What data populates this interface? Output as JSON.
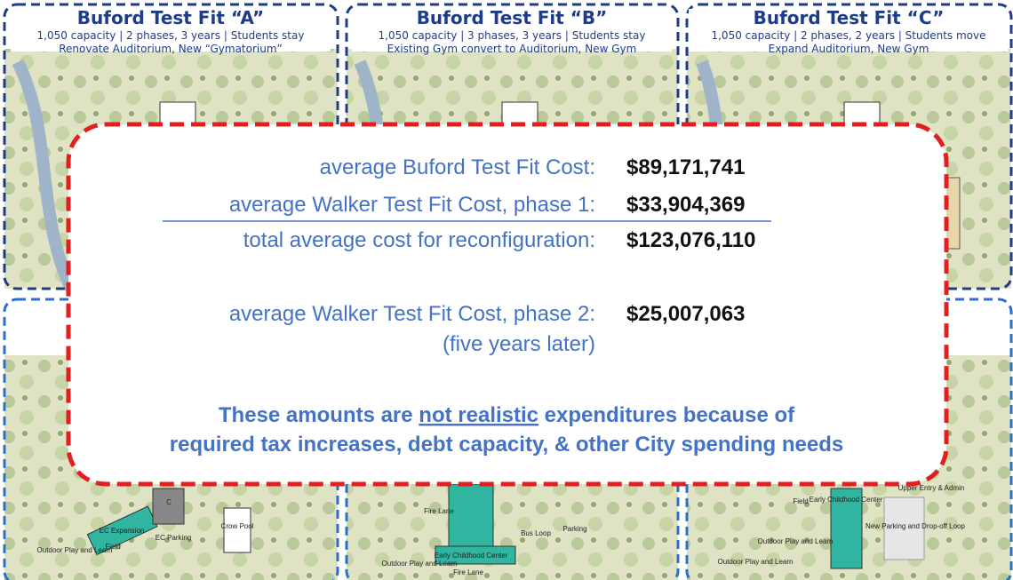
{
  "panels": [
    {
      "title": "Buford Test Fit “A”",
      "line1": "1,050 capacity | 2 phases, 3 years | Students  stay",
      "line2": "Renovate Auditorium, New “Gymatorium”"
    },
    {
      "title": "Buford Test Fit “B”",
      "line1": "1,050 capacity | 3 phases, 3 years | Students  stay",
      "line2": "Existing Gym convert to Auditorium, New Gym"
    },
    {
      "title": "Buford Test Fit “C”",
      "line1": "1,050 capacity | 2 phases, 2 years | Students move",
      "line2": "Expand Auditorium, New Gym"
    }
  ],
  "costs": {
    "rows": [
      {
        "label": "average Buford Test Fit Cost:",
        "amount": "$89,171,741"
      },
      {
        "label": "average Walker Test Fit Cost, phase 1:",
        "amount": "$33,904,369"
      },
      {
        "label": "total average cost for reconfiguration:",
        "amount": "$123,076,110"
      },
      {
        "label": "average Walker Test Fit Cost, phase 2:",
        "amount": "$25,007,063"
      }
    ],
    "note": "(five years later)"
  },
  "statement": {
    "before": "These amounts are ",
    "emphasis": "not realistic",
    "after": " expenditures because of",
    "line2": "required tax increases, debt capacity, & other City spending needs"
  },
  "map_labels": [
    "EC Expansion",
    "C",
    "Crow Pool",
    "EC Parking",
    "Field",
    "Outdoor Play and Learn",
    "Fire Lane",
    "Parking",
    "Bus Loop",
    "Early Childhood Center",
    "Outdoor Play and Learn",
    "Fire Lane",
    "Field",
    "Early Childhood Center",
    "Upper Entry & Admin",
    "New Parking and Drop-off Loop",
    "Outdoor Play and Learn",
    "Outdoor Play and Learn"
  ]
}
